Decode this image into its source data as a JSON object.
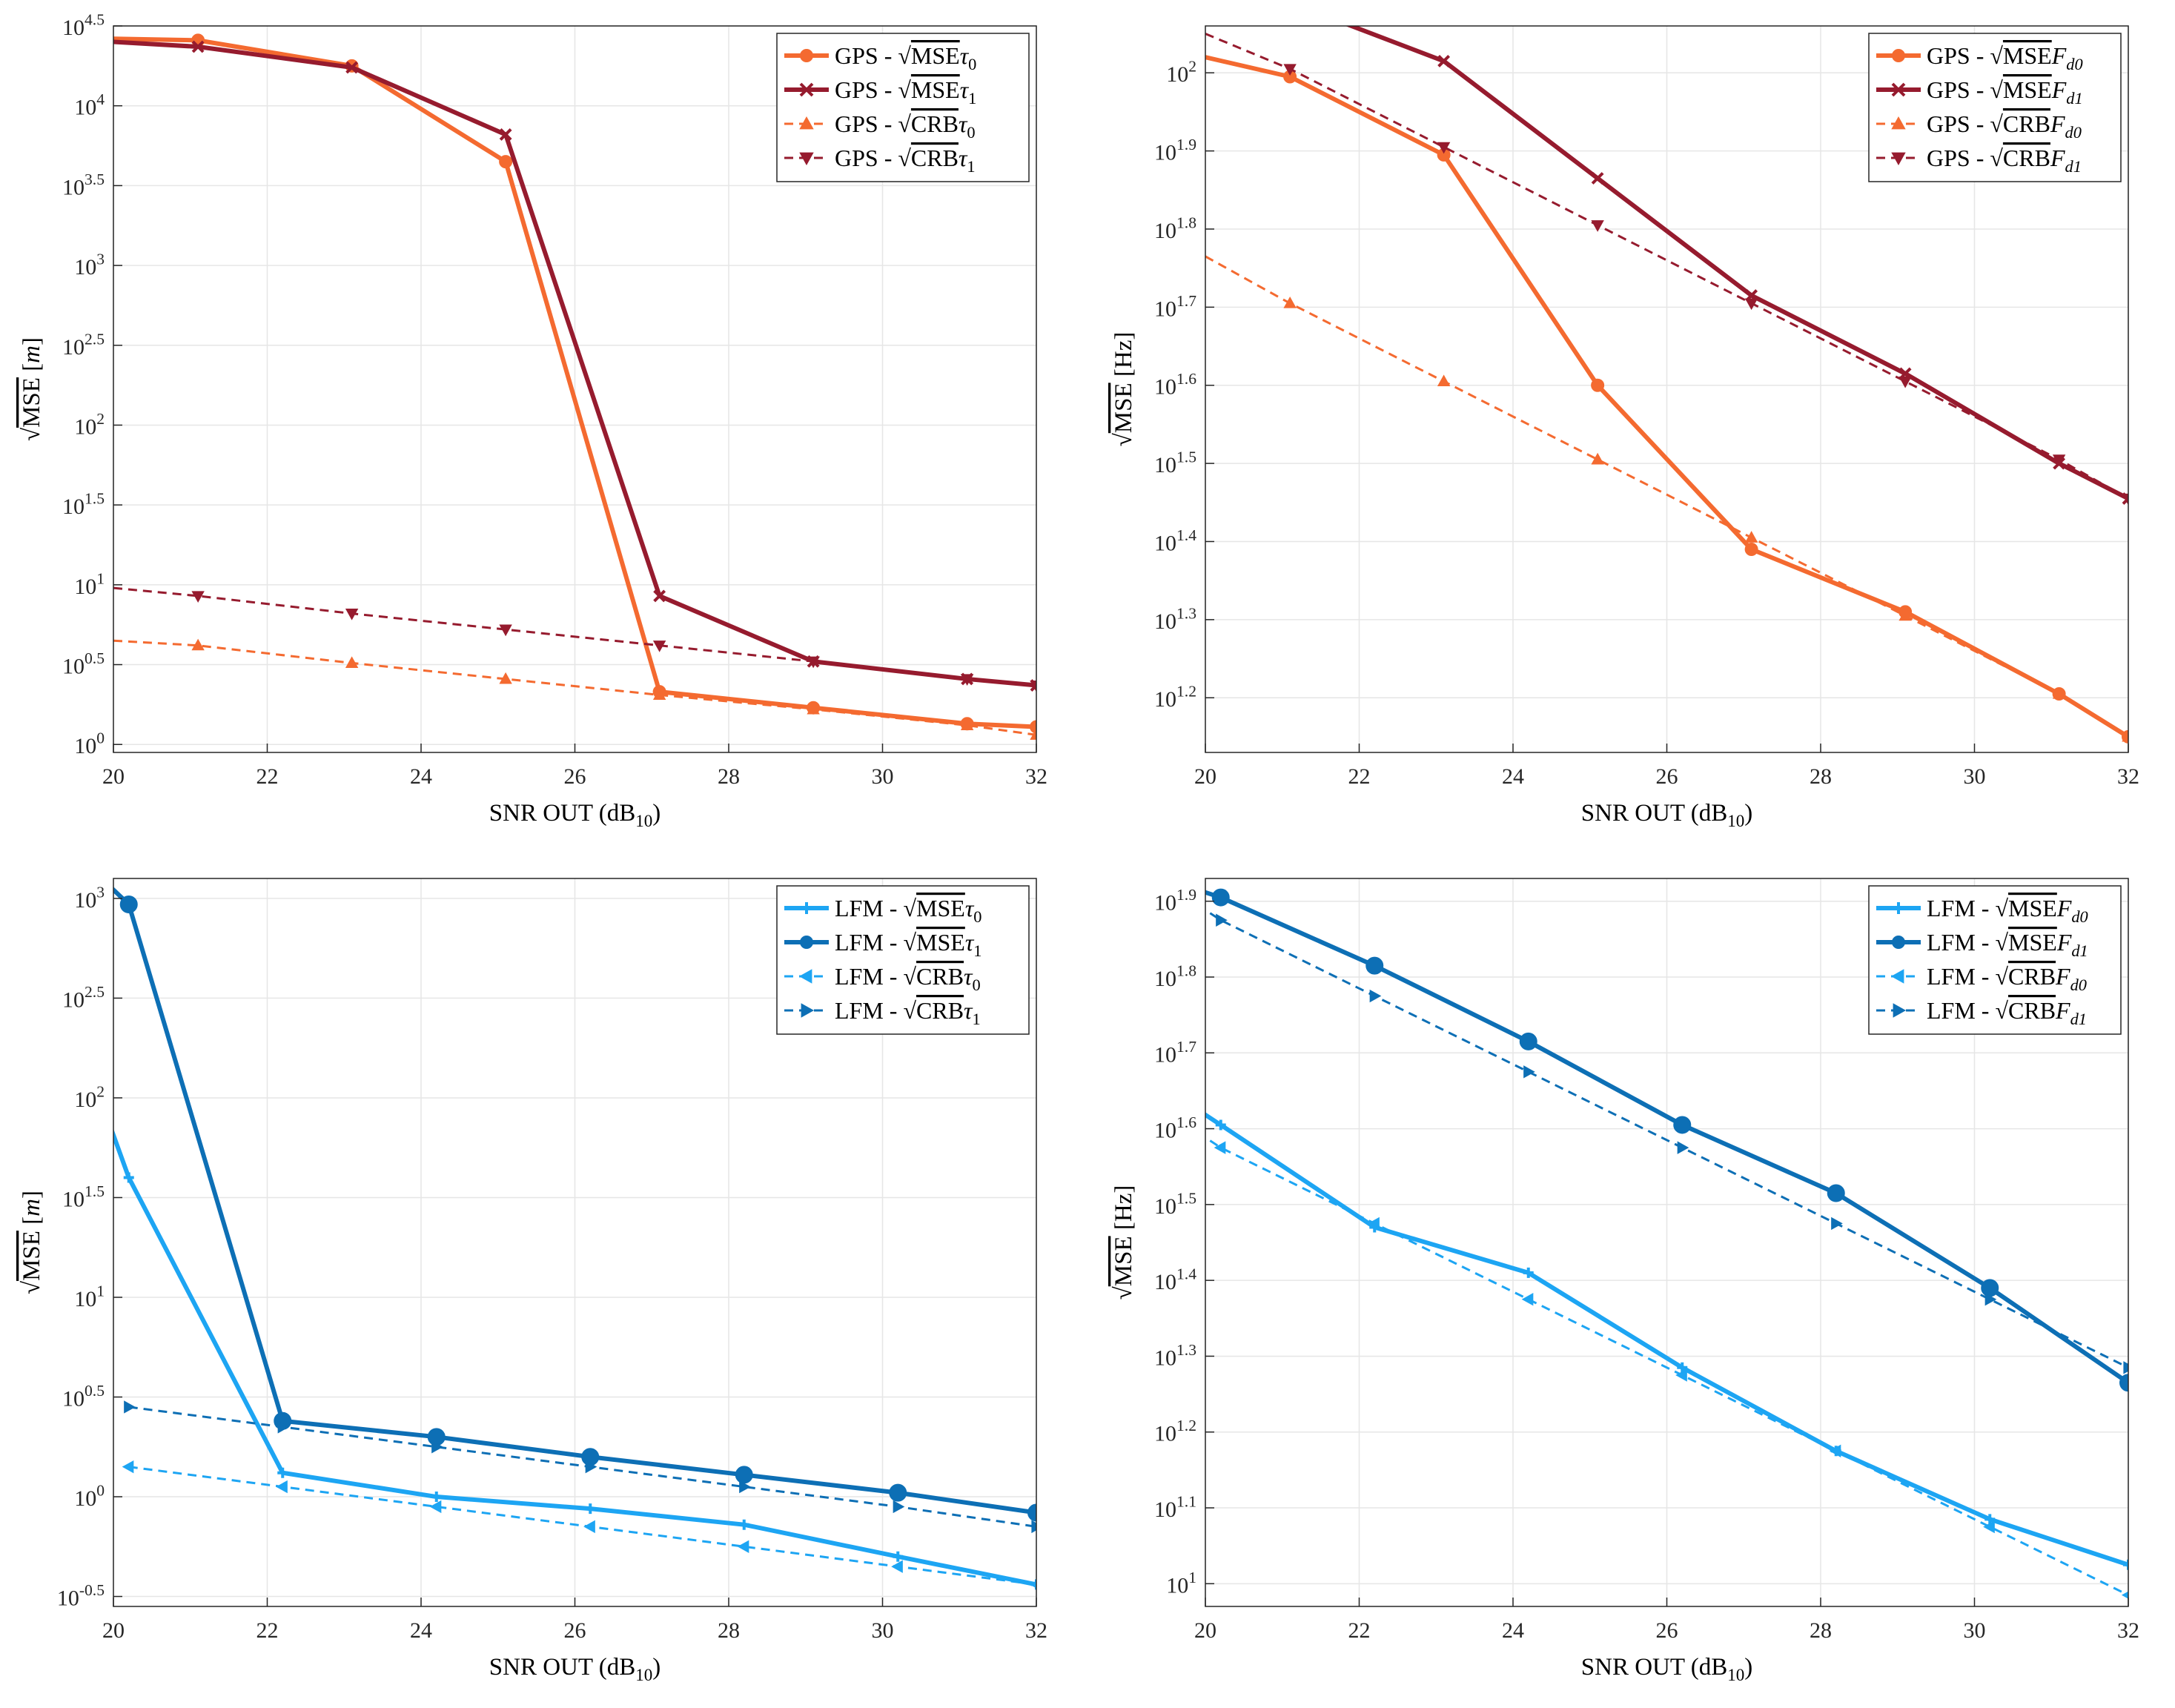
{
  "figure": {
    "panels": [
      "gps_delay",
      "gps_doppler",
      "lfm_delay",
      "lfm_doppler"
    ]
  },
  "styles": {
    "gps_mse0": {
      "color": "#f46a30",
      "dash": "",
      "marker": "circle",
      "width": 3
    },
    "gps_mse1": {
      "color": "#961b2e",
      "dash": "",
      "marker": "x",
      "width": 3
    },
    "gps_crb0": {
      "color": "#f46a30",
      "dash": "6,4",
      "marker": "tri-up",
      "width": 1.5
    },
    "gps_crb1": {
      "color": "#961b2e",
      "dash": "6,4",
      "marker": "tri-down",
      "width": 1.5
    },
    "lfm_mse0": {
      "color": "#1da5f3",
      "dash": "",
      "marker": "plus",
      "width": 3
    },
    "lfm_mse1": {
      "color": "#0d6fb5",
      "dash": "",
      "marker": "circle",
      "width": 3
    },
    "lfm_crb0": {
      "color": "#1da5f3",
      "dash": "6,4",
      "marker": "tri-left",
      "width": 1.5
    },
    "lfm_crb1": {
      "color": "#0d6fb5",
      "dash": "6,4",
      "marker": "tri-right",
      "width": 1.5
    }
  },
  "chart_data": [
    {
      "id": "gps_delay",
      "type": "line",
      "title": "",
      "xlabel": "SNR OUT (dB10)",
      "ylabel": "√MSE [m]",
      "xlim": [
        20,
        32
      ],
      "ylim": [
        -0.05,
        4.5
      ],
      "yscale": "log10",
      "xticks": [
        20,
        22,
        24,
        26,
        28,
        30,
        32
      ],
      "yticks": [
        {
          "v": 0,
          "t": "10^0"
        },
        {
          "v": 0.5,
          "t": "10^0.5"
        },
        {
          "v": 1,
          "t": "10^1"
        },
        {
          "v": 1.5,
          "t": "10^1.5"
        },
        {
          "v": 2,
          "t": "10^2"
        },
        {
          "v": 2.5,
          "t": "10^2.5"
        },
        {
          "v": 3,
          "t": "10^3"
        },
        {
          "v": 3.5,
          "t": "10^3.5"
        },
        {
          "v": 4,
          "t": "10^4"
        },
        {
          "v": 4.5,
          "t": "10^4.5"
        }
      ],
      "grid": true,
      "legend_position": "top-right",
      "series": [
        {
          "name": "GPS - √MSE τ0",
          "style": "gps_mse0",
          "x": [
            20,
            21.1,
            23.1,
            25.1,
            27.1,
            29.1,
            31.1,
            32
          ],
          "y": [
            4.42,
            4.41,
            4.25,
            3.65,
            0.33,
            0.23,
            0.13,
            0.11
          ]
        },
        {
          "name": "GPS - √MSE τ1",
          "style": "gps_mse1",
          "x": [
            20,
            21.1,
            23.1,
            25.1,
            27.1,
            29.1,
            31.1,
            32
          ],
          "y": [
            4.4,
            4.37,
            4.24,
            3.82,
            0.93,
            0.52,
            0.41,
            0.37
          ]
        },
        {
          "name": "GPS - √CRB τ0",
          "style": "gps_crb0",
          "x": [
            20,
            21.1,
            23.1,
            25.1,
            27.1,
            29.1,
            31.1,
            32
          ],
          "y": [
            0.65,
            0.62,
            0.51,
            0.41,
            0.31,
            0.22,
            0.12,
            0.06
          ]
        },
        {
          "name": "GPS - √CRB τ1",
          "style": "gps_crb1",
          "x": [
            20,
            21.1,
            23.1,
            25.1,
            27.1,
            29.1,
            31.1,
            32
          ],
          "y": [
            0.98,
            0.93,
            0.82,
            0.72,
            0.62,
            0.52,
            0.41,
            0.37
          ]
        }
      ]
    },
    {
      "id": "gps_doppler",
      "type": "line",
      "title": "",
      "xlabel": "SNR OUT (dB10)",
      "ylabel": "√MSE [Hz]",
      "xlim": [
        20,
        32
      ],
      "ylim": [
        1.13,
        2.06
      ],
      "yscale": "log10",
      "xticks": [
        20,
        22,
        24,
        26,
        28,
        30,
        32
      ],
      "yticks": [
        {
          "v": 1.2,
          "t": "10^1.2"
        },
        {
          "v": 1.3,
          "t": "10^1.3"
        },
        {
          "v": 1.4,
          "t": "10^1.4"
        },
        {
          "v": 1.5,
          "t": "10^1.5"
        },
        {
          "v": 1.6,
          "t": "10^1.6"
        },
        {
          "v": 1.7,
          "t": "10^1.7"
        },
        {
          "v": 1.8,
          "t": "10^1.8"
        },
        {
          "v": 1.9,
          "t": "10^1.9"
        },
        {
          "v": 2,
          "t": "10^2"
        }
      ],
      "grid": true,
      "legend_position": "top-right",
      "series": [
        {
          "name": "GPS - √MSE Fd0",
          "style": "gps_mse0",
          "x": [
            20,
            21.1,
            23.1,
            25.1,
            27.1,
            29.1,
            31.1,
            32
          ],
          "y": [
            2.02,
            1.995,
            1.895,
            1.6,
            1.39,
            1.31,
            1.205,
            1.15
          ]
        },
        {
          "name": "GPS - √MSE Fd1",
          "style": "gps_mse1",
          "x": [
            20,
            21.1,
            23.1,
            25.1,
            27.1,
            29.1,
            31.1,
            32
          ],
          "y": [
            2.09,
            2.09,
            2.015,
            1.865,
            1.715,
            1.615,
            1.5,
            1.455
          ]
        },
        {
          "name": "GPS - √CRB Fd0",
          "style": "gps_crb0",
          "x": [
            20,
            21.1,
            23.1,
            25.1,
            27.1,
            29.1,
            31.1,
            32
          ],
          "y": [
            1.765,
            1.705,
            1.605,
            1.505,
            1.405,
            1.305,
            1.205,
            1.15
          ]
        },
        {
          "name": "GPS - √CRB Fd1",
          "style": "gps_crb1",
          "x": [
            20,
            21.1,
            23.1,
            25.1,
            27.1,
            29.1,
            31.1,
            32
          ],
          "y": [
            2.05,
            2.005,
            1.905,
            1.805,
            1.705,
            1.605,
            1.505,
            1.455
          ]
        }
      ]
    },
    {
      "id": "lfm_delay",
      "type": "line",
      "title": "",
      "xlabel": "SNR OUT (dB10)",
      "ylabel": "√MSE [m]",
      "xlim": [
        20,
        32
      ],
      "ylim": [
        -0.55,
        3.1
      ],
      "yscale": "log10",
      "xticks": [
        20,
        22,
        24,
        26,
        28,
        30,
        32
      ],
      "yticks": [
        {
          "v": -0.5,
          "t": "10^-0.5"
        },
        {
          "v": 0,
          "t": "10^0"
        },
        {
          "v": 0.5,
          "t": "10^0.5"
        },
        {
          "v": 1,
          "t": "10^1"
        },
        {
          "v": 1.5,
          "t": "10^1.5"
        },
        {
          "v": 2,
          "t": "10^2"
        },
        {
          "v": 2.5,
          "t": "10^2.5"
        },
        {
          "v": 3,
          "t": "10^3"
        }
      ],
      "grid": true,
      "legend_position": "top-right",
      "series": [
        {
          "name": "LFM - √MSE τ0",
          "style": "lfm_mse0",
          "x": [
            19.9,
            20.2,
            22.2,
            24.2,
            26.2,
            28.2,
            30.2,
            32
          ],
          "y": [
            1.92,
            1.6,
            0.12,
            0.0,
            -0.06,
            -0.14,
            -0.3,
            -0.44
          ]
        },
        {
          "name": "LFM - √MSE τ1",
          "style": "lfm_mse1",
          "x": [
            19.9,
            20.2,
            22.2,
            24.2,
            26.2,
            28.2,
            30.2,
            32
          ],
          "y": [
            3.08,
            2.97,
            0.38,
            0.3,
            0.2,
            0.11,
            0.02,
            -0.08
          ]
        },
        {
          "name": "LFM - √CRB τ0",
          "style": "lfm_crb0",
          "x": [
            20.2,
            22.2,
            24.2,
            26.2,
            28.2,
            30.2,
            32
          ],
          "y": [
            0.15,
            0.05,
            -0.05,
            -0.15,
            -0.25,
            -0.35,
            -0.44
          ]
        },
        {
          "name": "LFM - √CRB τ1",
          "style": "lfm_crb1",
          "x": [
            20.2,
            22.2,
            24.2,
            26.2,
            28.2,
            30.2,
            32
          ],
          "y": [
            0.45,
            0.35,
            0.25,
            0.15,
            0.05,
            -0.05,
            -0.15
          ]
        }
      ]
    },
    {
      "id": "lfm_doppler",
      "type": "line",
      "title": "",
      "xlabel": "SNR OUT (dB10)",
      "ylabel": "√MSE [Hz]",
      "xlim": [
        20,
        32
      ],
      "ylim": [
        0.97,
        1.93
      ],
      "yscale": "log10",
      "xticks": [
        20,
        22,
        24,
        26,
        28,
        30,
        32
      ],
      "yticks": [
        {
          "v": 1,
          "t": "10^1"
        },
        {
          "v": 1.1,
          "t": "10^1.1"
        },
        {
          "v": 1.2,
          "t": "10^1.2"
        },
        {
          "v": 1.3,
          "t": "10^1.3"
        },
        {
          "v": 1.4,
          "t": "10^1.4"
        },
        {
          "v": 1.5,
          "t": "10^1.5"
        },
        {
          "v": 1.6,
          "t": "10^1.6"
        },
        {
          "v": 1.7,
          "t": "10^1.7"
        },
        {
          "v": 1.8,
          "t": "10^1.8"
        },
        {
          "v": 1.9,
          "t": "10^1.9"
        }
      ],
      "grid": true,
      "legend_position": "top-right",
      "series": [
        {
          "name": "LFM - √MSE Fd0",
          "style": "lfm_mse0",
          "x": [
            19.9,
            20.2,
            22.2,
            24.2,
            26.2,
            28.2,
            30.2,
            32
          ],
          "y": [
            1.625,
            1.605,
            1.47,
            1.41,
            1.285,
            1.175,
            1.085,
            1.025
          ]
        },
        {
          "name": "LFM - √MSE Fd1",
          "style": "lfm_mse1",
          "x": [
            19.9,
            20.2,
            22.2,
            24.2,
            26.2,
            28.2,
            30.2,
            32
          ],
          "y": [
            1.915,
            1.905,
            1.815,
            1.715,
            1.605,
            1.515,
            1.39,
            1.265
          ]
        },
        {
          "name": "LFM - √CRB Fd0",
          "style": "lfm_crb0",
          "x": [
            19.9,
            20.2,
            22.2,
            24.2,
            26.2,
            28.2,
            30.2,
            32
          ],
          "y": [
            1.595,
            1.575,
            1.475,
            1.375,
            1.275,
            1.175,
            1.075,
            0.985
          ]
        },
        {
          "name": "LFM - √CRB Fd1",
          "style": "lfm_crb1",
          "x": [
            19.9,
            20.2,
            22.2,
            24.2,
            26.2,
            28.2,
            30.2,
            32
          ],
          "y": [
            1.895,
            1.875,
            1.775,
            1.675,
            1.575,
            1.475,
            1.375,
            1.285
          ]
        }
      ]
    }
  ]
}
